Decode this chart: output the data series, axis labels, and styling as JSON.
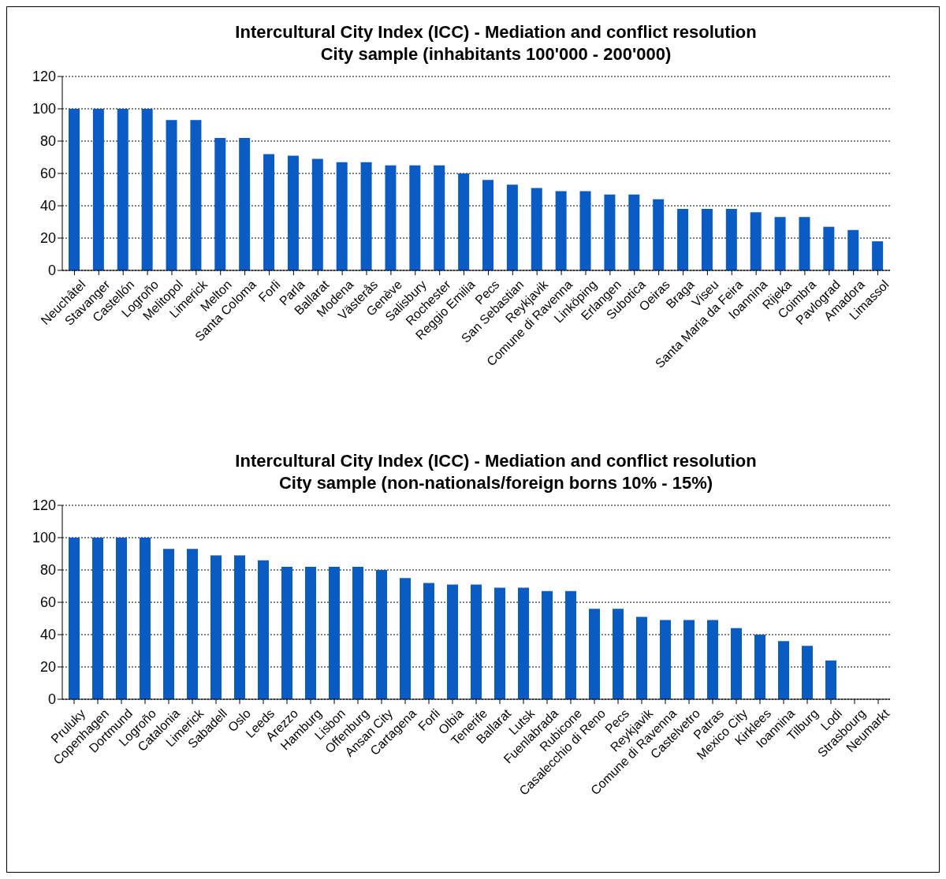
{
  "chart_data": [
    {
      "type": "bar",
      "title": "Intercultural City Index (ICC) - Mediation and conflict resolution",
      "subtitle": "City sample (inhabitants 100'000 - 200'000)",
      "categories": [
        "Neuchâtel",
        "Stavanger",
        "Castellón",
        "Logroño",
        "Melitopol",
        "Limerick",
        "Melton",
        "Santa Coloma",
        "Forli",
        "Parla",
        "Ballarat",
        "Modena",
        "Västerås",
        "Genève",
        "Salisbury",
        "Rochester",
        "Reggio Emilia",
        "Pecs",
        "San Sebastian",
        "Reykjavik",
        "Comune di Ravenna",
        "Linköping",
        "Erlangen",
        "Subotica",
        "Oeiras",
        "Braga",
        "Viseu",
        "Santa Maria da Feira",
        "Ioannina",
        "Rijeka",
        "Coimbra",
        "Pavlograd",
        "Amadora",
        "Limassol"
      ],
      "values": [
        100,
        100,
        100,
        100,
        93,
        93,
        82,
        82,
        72,
        71,
        69,
        67,
        67,
        65,
        65,
        65,
        60,
        56,
        53,
        51,
        49,
        49,
        47,
        47,
        44,
        38,
        38,
        38,
        36,
        33,
        33,
        27,
        25,
        18
      ],
      "color": "#0a5bc4",
      "ylim": [
        0,
        120
      ],
      "yticks": [
        0,
        20,
        40,
        60,
        80,
        100,
        120
      ],
      "grid": "y"
    },
    {
      "type": "bar",
      "title": "Intercultural City Index (ICC) - Mediation and conflict resolution",
      "subtitle": "City sample (non-nationals/foreign borns 10% - 15%)",
      "categories": [
        "Pruluky",
        "Copenhagen",
        "Dortmund",
        "Logroño",
        "Catalonia",
        "Limerick",
        "Sabadell",
        "Oslo",
        "Leeds",
        "Arezzo",
        "Hamburg",
        "Lisbon",
        "Offenburg",
        "Ansan City",
        "Cartagena",
        "Forli",
        "Olbia",
        "Tenerife",
        "Ballarat",
        "Lutsk",
        "Fuenlabrada",
        "Rubicone",
        "Casalecchio di Reno",
        "Pecs",
        "Reykjavik",
        "Comune di Ravenna",
        "Castelvetro",
        "Patras",
        "Mexico City",
        "Kirklees",
        "Ioannina",
        "Tilburg",
        "Lodi",
        "Strasbourg",
        "Neumarkt"
      ],
      "values": [
        100,
        100,
        100,
        100,
        93,
        93,
        89,
        89,
        86,
        82,
        82,
        82,
        82,
        80,
        75,
        72,
        71,
        71,
        69,
        69,
        67,
        67,
        56,
        56,
        51,
        49,
        49,
        49,
        44,
        40,
        36,
        33,
        24,
        null,
        null
      ],
      "color": "#0a5bc4",
      "ylim": [
        0,
        120
      ],
      "yticks": [
        0,
        20,
        40,
        60,
        80,
        100,
        120
      ],
      "grid": "y"
    }
  ]
}
